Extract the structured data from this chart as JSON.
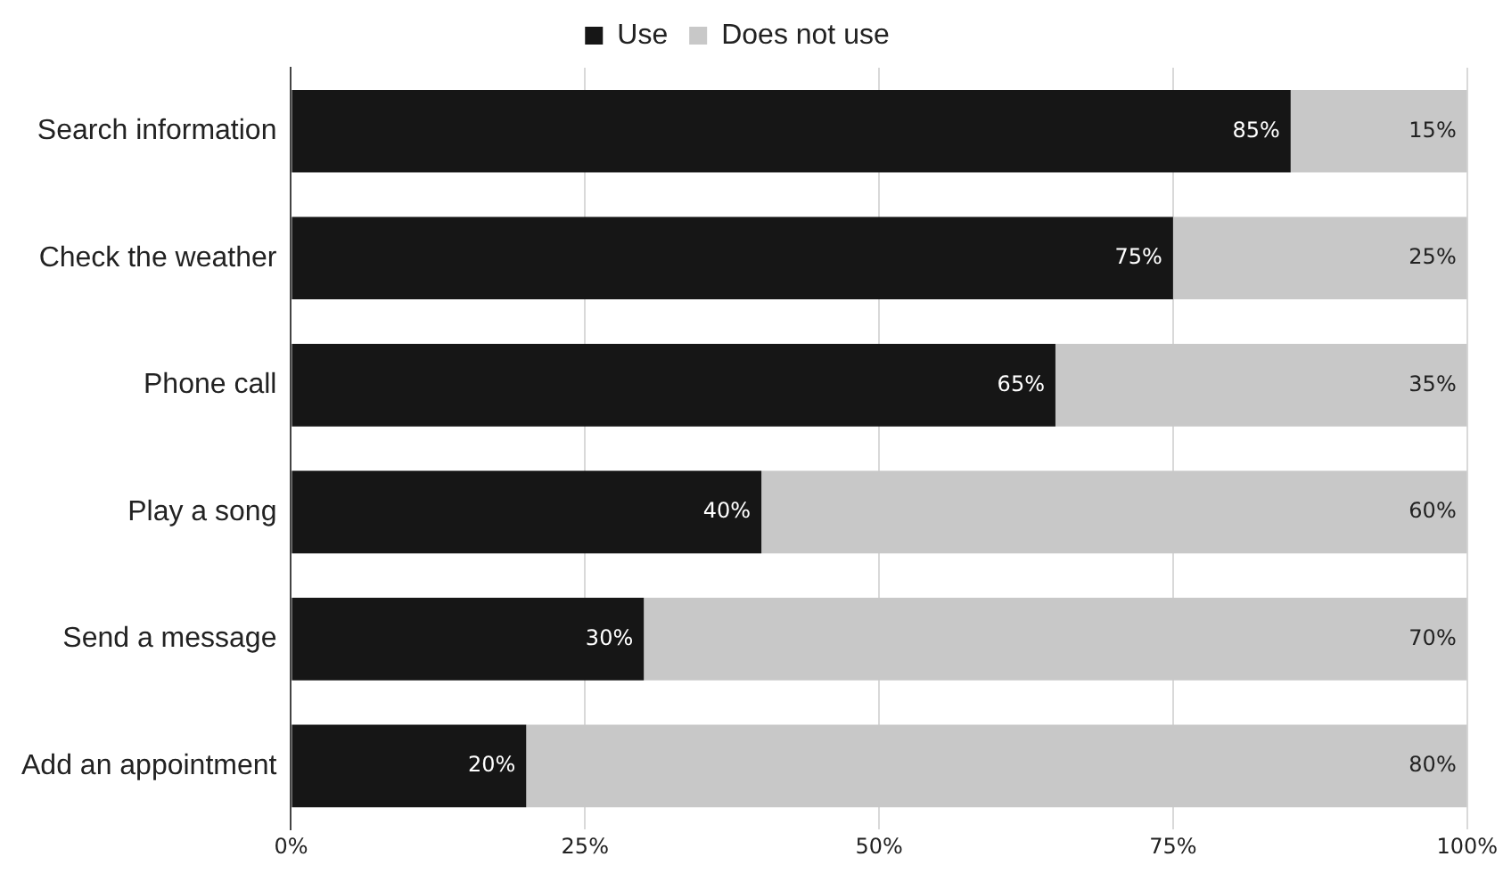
{
  "chart_data": {
    "type": "bar",
    "orientation": "horizontal",
    "stacked": true,
    "categories": [
      "Search information",
      "Check the weather",
      "Phone call",
      "Play a song",
      "Send a message",
      "Add an appointment"
    ],
    "series": [
      {
        "name": "Use",
        "color": "#161616",
        "values": [
          85,
          75,
          65,
          40,
          30,
          20
        ],
        "value_labels": [
          "85%",
          "75%",
          "65%",
          "40%",
          "30%",
          "20%"
        ]
      },
      {
        "name": "Does not use",
        "color": "#c8c8c8",
        "values": [
          15,
          25,
          35,
          60,
          70,
          80
        ],
        "value_labels": [
          "15%",
          "25%",
          "35%",
          "60%",
          "70%",
          "80%"
        ]
      }
    ],
    "xlim": [
      0,
      100
    ],
    "xticks": [
      {
        "value": 0,
        "label": "0%"
      },
      {
        "value": 25,
        "label": "25%"
      },
      {
        "value": 50,
        "label": "50%"
      },
      {
        "value": 75,
        "label": "75%"
      },
      {
        "value": 100,
        "label": "100%"
      }
    ],
    "grid": "x",
    "legend": "top"
  }
}
